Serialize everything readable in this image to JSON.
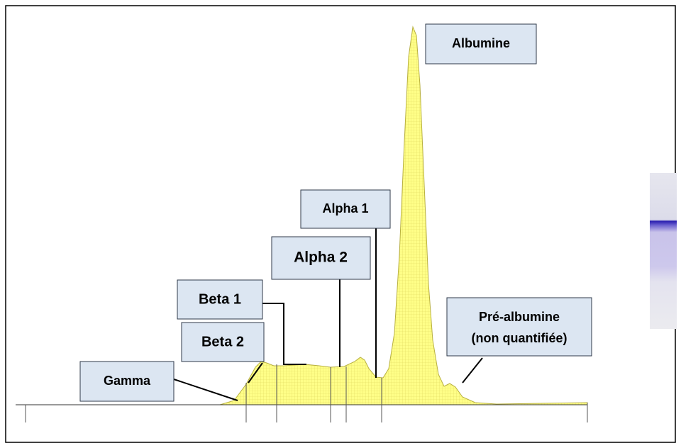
{
  "labels": {
    "albumine": "Albumine",
    "alpha1": "Alpha 1",
    "alpha2": "Alpha 2",
    "beta1": "Beta 1",
    "beta2": "Beta 2",
    "gamma": "Gamma",
    "prealbumine": [
      "Pré-albumine",
      "(non quantifiée)"
    ]
  }
}
